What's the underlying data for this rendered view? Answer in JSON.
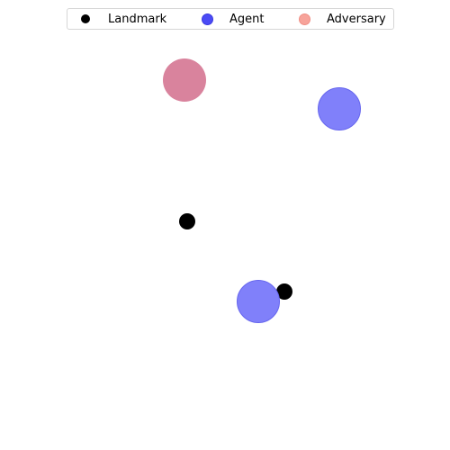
{
  "legend": {
    "items": [
      {
        "label": "Landmark",
        "color": "#000000"
      },
      {
        "label": "Agent",
        "color": "#4b4bf5"
      },
      {
        "label": "Adversary",
        "color": "#f7a39a"
      }
    ]
  },
  "colors": {
    "landmark": "#000000",
    "agent_fill": "#8080fa",
    "agent_edge": "#6666ee",
    "adversary_fill": "#d9839d"
  }
}
